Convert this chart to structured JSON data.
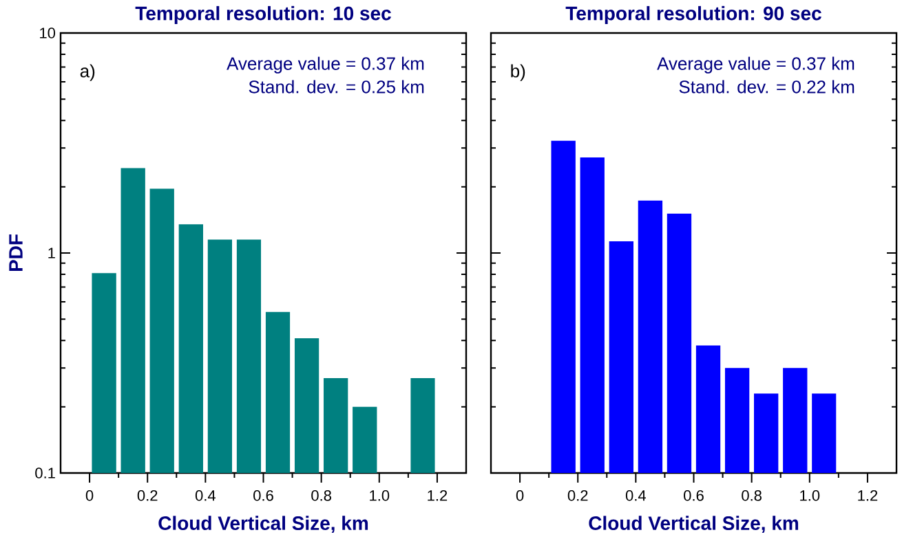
{
  "chart_data": [
    {
      "type": "histogram",
      "title": "Temporal resolution: 10 sec",
      "xlabel": "Cloud Vertical Size, km",
      "ylabel": "PDF",
      "bins": [
        0,
        0.1,
        0.2,
        0.3,
        0.4,
        0.5,
        0.6,
        0.7,
        0.8,
        0.9,
        1.0,
        1.1,
        1.2
      ],
      "values": [
        0.81,
        2.43,
        1.96,
        1.35,
        1.15,
        1.15,
        0.54,
        0.41,
        0.27,
        0.2,
        null,
        0.27
      ],
      "color": "#008080",
      "log": true,
      "xlim": [
        -0.1,
        1.3
      ],
      "xticks": [
        0,
        0.2,
        0.4,
        0.6,
        0.8,
        {
          "value": 1,
          "label": "1.0"
        },
        1.2
      ],
      "ylim": [
        0.1,
        10
      ],
      "yticks": [
        0.1,
        1,
        10
      ],
      "annotations": [
        "a)",
        "Average value = 0.37 km",
        "Stand. dev.      = 0.25 km"
      ]
    },
    {
      "type": "histogram",
      "title": "Temporal resolution: 90 sec",
      "xlabel": "Cloud Vertical Size, km",
      "bins": [
        0.1,
        0.2,
        0.3,
        0.4,
        0.5,
        0.6,
        0.7,
        0.8,
        0.9,
        1.0,
        1.1
      ],
      "values": [
        3.24,
        2.72,
        1.13,
        1.73,
        1.51,
        0.38,
        0.3,
        0.23,
        0.3,
        0.23
      ],
      "color": "#0000ff",
      "log": true,
      "xlim": [
        -0.1,
        1.3
      ],
      "xticks": [
        0,
        0.2,
        0.4,
        0.6,
        0.8,
        {
          "value": 1,
          "label": "1.0"
        },
        1.2
      ],
      "ylim": [
        0.1,
        10
      ],
      "yticks": [
        0.1,
        1,
        10
      ],
      "tick_labels": "x",
      "annotations": [
        "b)",
        "Average value = 0.37 km",
        "Stand. dev.      = 0.22 km"
      ]
    }
  ]
}
